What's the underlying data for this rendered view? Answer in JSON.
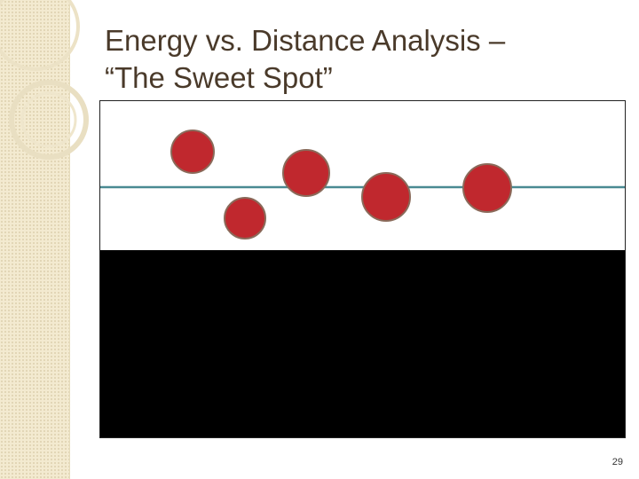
{
  "slide": {
    "title_line1": "Energy vs. Distance Analysis –",
    "title_line2": "“The Sweet Spot”",
    "page_number": "29"
  },
  "colors": {
    "title": "#4a3a2a",
    "ball_fill": "#c0282e",
    "ball_stroke": "#8a6a5a",
    "reference_line": "#4a8a92",
    "lower_panel": "#000000",
    "left_band": "#f3ead0"
  }
}
